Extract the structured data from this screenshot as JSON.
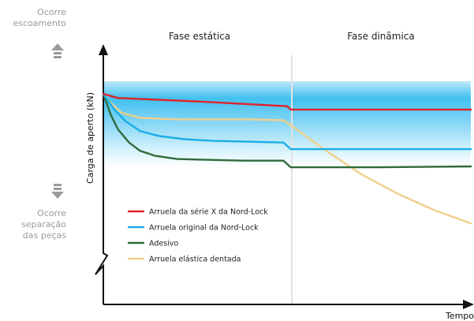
{
  "chart_data": {
    "type": "line",
    "xlabel": "Tempo",
    "ylabel": "Carga de aperto (kN)",
    "phases": [
      "Fase estática",
      "Fase dinâmica"
    ],
    "top_annotation": [
      "Ocorre",
      "escoamento"
    ],
    "bottom_annotation": [
      "Ocorre",
      "separação",
      "das peças"
    ],
    "grid": false,
    "legend_position": "bottom-left inside plot",
    "series": [
      {
        "name": "Arruela da série X da Nord-Lock",
        "color": "#e2232a",
        "x": [
          0,
          0.04,
          0.25,
          0.5,
          0.51,
          0.75,
          1.0
        ],
        "y": [
          0.995,
          0.97,
          0.95,
          0.92,
          0.9,
          0.9,
          0.9
        ]
      },
      {
        "name": "Arruela original da Nord-Lock",
        "color": "#18aee7",
        "x": [
          0,
          0.03,
          0.06,
          0.1,
          0.15,
          0.22,
          0.3,
          0.4,
          0.49,
          0.5,
          0.51,
          0.75,
          1.0
        ],
        "y": [
          0.995,
          0.9,
          0.83,
          0.77,
          0.74,
          0.72,
          0.71,
          0.705,
          0.7,
          0.68,
          0.66,
          0.66,
          0.66
        ]
      },
      {
        "name": "Adesivo",
        "color": "#2f6b3a",
        "x": [
          0,
          0.02,
          0.04,
          0.07,
          0.1,
          0.14,
          0.2,
          0.28,
          0.38,
          0.49,
          0.5,
          0.51,
          0.75,
          1.0
        ],
        "y": [
          0.995,
          0.87,
          0.78,
          0.7,
          0.65,
          0.62,
          0.6,
          0.595,
          0.59,
          0.59,
          0.57,
          0.55,
          0.55,
          0.555
        ]
      },
      {
        "name": "Arruela elástica dentada",
        "color": "#f0cf8a",
        "x": [
          0,
          0.02,
          0.05,
          0.1,
          0.2,
          0.3,
          0.4,
          0.49,
          0.5,
          0.52,
          0.55,
          0.6,
          0.7,
          0.8,
          0.9,
          1.0
        ],
        "y": [
          0.995,
          0.94,
          0.88,
          0.85,
          0.84,
          0.84,
          0.84,
          0.835,
          0.82,
          0.79,
          0.74,
          0.66,
          0.51,
          0.39,
          0.29,
          0.21
        ]
      }
    ]
  }
}
